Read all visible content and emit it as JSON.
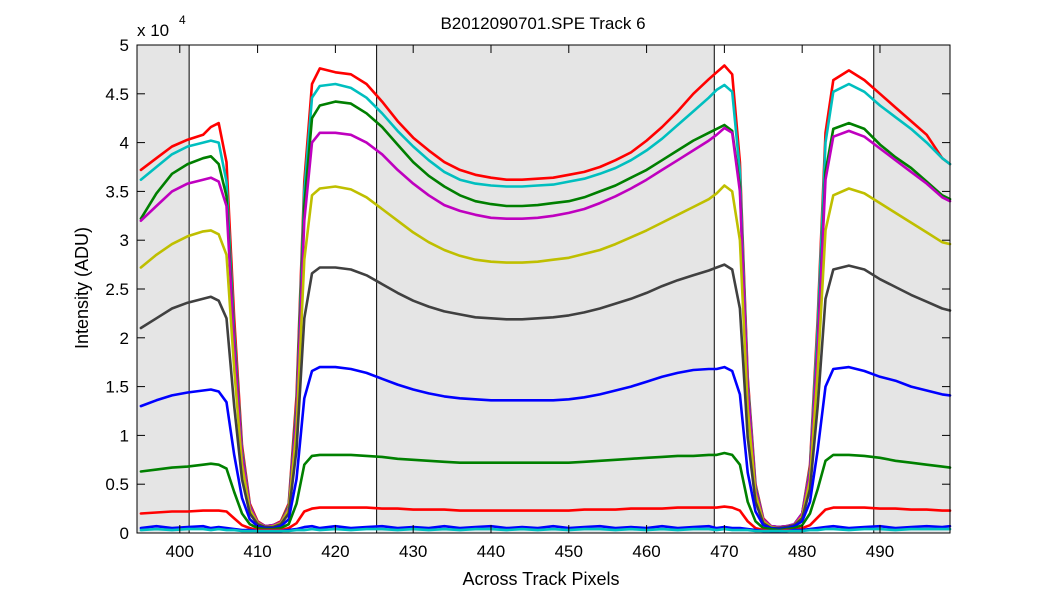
{
  "chart_data": {
    "type": "line",
    "title": "B2012090701.SPE   Track 6",
    "xlabel": "Across Track Pixels",
    "ylabel": "Intensity (ADU)",
    "y_exponent_prefix": "x 10",
    "y_exponent_power": "4",
    "xlim": [
      394.5,
      499
    ],
    "ylim": [
      0,
      5
    ],
    "xticks": [
      400,
      410,
      420,
      430,
      440,
      450,
      460,
      470,
      480,
      490
    ],
    "yticks": [
      0,
      0.5,
      1,
      1.5,
      2,
      2.5,
      3,
      3.5,
      4,
      4.5,
      5
    ],
    "ytick_labels": [
      "0",
      "0.5",
      "1",
      "1.5",
      "2",
      "2.5",
      "3",
      "3.5",
      "4",
      "4.5",
      "5"
    ],
    "grid": false,
    "legend": "none",
    "shaded_regions": [
      [
        394.5,
        401.2
      ],
      [
        425.3,
        468.7
      ],
      [
        489.2,
        499
      ]
    ],
    "vertical_lines": [
      401.2,
      425.3,
      468.7,
      489.2
    ],
    "colors": {
      "background": "#ffffff",
      "shade": "#e5e5e5",
      "axes": "#000000"
    },
    "x": [
      395,
      397,
      399,
      401,
      403,
      404,
      405,
      406,
      407,
      408,
      409,
      410,
      411,
      412,
      413,
      414,
      415,
      416,
      417,
      418,
      420,
      422,
      424,
      426,
      428,
      430,
      432,
      434,
      436,
      438,
      440,
      442,
      444,
      446,
      448,
      450,
      452,
      454,
      456,
      458,
      460,
      462,
      464,
      466,
      468,
      469,
      470,
      471,
      472,
      473,
      474,
      475,
      476,
      477,
      478,
      479,
      480,
      481,
      482,
      483,
      484,
      486,
      488,
      490,
      492,
      494,
      496,
      498,
      499
    ],
    "series": [
      {
        "color": "#ff0000",
        "values": [
          3.72,
          3.84,
          3.96,
          4.03,
          4.08,
          4.16,
          4.2,
          3.8,
          2.2,
          0.9,
          0.3,
          0.12,
          0.07,
          0.08,
          0.12,
          0.3,
          1.4,
          3.6,
          4.6,
          4.76,
          4.72,
          4.7,
          4.6,
          4.42,
          4.22,
          4.05,
          3.92,
          3.8,
          3.72,
          3.67,
          3.64,
          3.62,
          3.62,
          3.63,
          3.64,
          3.67,
          3.7,
          3.75,
          3.82,
          3.9,
          4.02,
          4.16,
          4.32,
          4.5,
          4.65,
          4.72,
          4.79,
          4.7,
          3.8,
          1.6,
          0.5,
          0.15,
          0.07,
          0.06,
          0.07,
          0.09,
          0.2,
          0.7,
          2.2,
          4.1,
          4.64,
          4.74,
          4.64,
          4.5,
          4.36,
          4.22,
          4.08,
          3.84,
          3.78
        ]
      },
      {
        "color": "#00bfbf",
        "values": [
          3.62,
          3.75,
          3.88,
          3.96,
          4.0,
          4.02,
          4.0,
          3.6,
          2.05,
          0.85,
          0.28,
          0.11,
          0.07,
          0.08,
          0.11,
          0.28,
          1.3,
          3.5,
          4.46,
          4.58,
          4.6,
          4.56,
          4.46,
          4.3,
          4.12,
          3.96,
          3.82,
          3.7,
          3.62,
          3.58,
          3.56,
          3.55,
          3.55,
          3.56,
          3.57,
          3.6,
          3.63,
          3.68,
          3.74,
          3.82,
          3.92,
          4.04,
          4.18,
          4.32,
          4.46,
          4.54,
          4.59,
          4.52,
          3.7,
          1.55,
          0.48,
          0.14,
          0.07,
          0.06,
          0.07,
          0.09,
          0.2,
          0.66,
          2.1,
          4.0,
          4.52,
          4.6,
          4.52,
          4.38,
          4.26,
          4.14,
          4.0,
          3.84,
          3.78
        ]
      },
      {
        "color": "#007f00",
        "values": [
          3.22,
          3.48,
          3.68,
          3.78,
          3.84,
          3.86,
          3.78,
          3.45,
          1.98,
          0.82,
          0.27,
          0.11,
          0.07,
          0.08,
          0.11,
          0.27,
          1.25,
          3.35,
          4.25,
          4.38,
          4.42,
          4.4,
          4.3,
          4.16,
          3.98,
          3.8,
          3.66,
          3.55,
          3.46,
          3.4,
          3.37,
          3.35,
          3.35,
          3.36,
          3.38,
          3.4,
          3.44,
          3.5,
          3.56,
          3.64,
          3.72,
          3.82,
          3.92,
          4.02,
          4.1,
          4.14,
          4.18,
          4.12,
          3.55,
          1.5,
          0.46,
          0.14,
          0.07,
          0.06,
          0.07,
          0.09,
          0.2,
          0.63,
          1.95,
          3.7,
          4.14,
          4.2,
          4.14,
          3.98,
          3.85,
          3.74,
          3.6,
          3.46,
          3.42
        ]
      },
      {
        "color": "#bf00bf",
        "values": [
          3.2,
          3.35,
          3.5,
          3.58,
          3.62,
          3.64,
          3.6,
          3.35,
          1.92,
          0.8,
          0.27,
          0.11,
          0.07,
          0.08,
          0.11,
          0.26,
          1.2,
          3.2,
          4.0,
          4.1,
          4.1,
          4.08,
          4.0,
          3.88,
          3.72,
          3.58,
          3.46,
          3.36,
          3.3,
          3.26,
          3.23,
          3.22,
          3.22,
          3.23,
          3.25,
          3.28,
          3.32,
          3.38,
          3.45,
          3.53,
          3.62,
          3.72,
          3.82,
          3.92,
          4.02,
          4.08,
          4.15,
          4.1,
          3.5,
          1.48,
          0.45,
          0.14,
          0.07,
          0.06,
          0.07,
          0.09,
          0.2,
          0.62,
          1.9,
          3.62,
          4.06,
          4.12,
          4.06,
          3.94,
          3.82,
          3.7,
          3.58,
          3.44,
          3.4
        ]
      },
      {
        "color": "#bfbf00",
        "values": [
          2.72,
          2.85,
          2.96,
          3.04,
          3.09,
          3.1,
          3.06,
          2.85,
          1.68,
          0.7,
          0.24,
          0.1,
          0.06,
          0.07,
          0.1,
          0.24,
          1.05,
          2.8,
          3.46,
          3.53,
          3.55,
          3.52,
          3.44,
          3.32,
          3.2,
          3.08,
          2.98,
          2.9,
          2.84,
          2.8,
          2.78,
          2.77,
          2.77,
          2.78,
          2.8,
          2.82,
          2.86,
          2.9,
          2.96,
          3.03,
          3.1,
          3.18,
          3.26,
          3.34,
          3.42,
          3.48,
          3.56,
          3.5,
          3.0,
          1.28,
          0.4,
          0.12,
          0.06,
          0.05,
          0.06,
          0.08,
          0.17,
          0.54,
          1.65,
          3.1,
          3.46,
          3.53,
          3.48,
          3.38,
          3.28,
          3.18,
          3.08,
          2.98,
          2.96
        ]
      },
      {
        "color": "#404040",
        "values": [
          2.1,
          2.2,
          2.3,
          2.36,
          2.4,
          2.42,
          2.38,
          2.2,
          1.3,
          0.55,
          0.2,
          0.09,
          0.06,
          0.06,
          0.09,
          0.2,
          0.85,
          2.2,
          2.66,
          2.72,
          2.72,
          2.7,
          2.64,
          2.55,
          2.46,
          2.38,
          2.32,
          2.27,
          2.24,
          2.21,
          2.2,
          2.19,
          2.19,
          2.2,
          2.21,
          2.23,
          2.26,
          2.3,
          2.35,
          2.4,
          2.46,
          2.53,
          2.59,
          2.64,
          2.69,
          2.72,
          2.75,
          2.7,
          2.3,
          0.98,
          0.32,
          0.1,
          0.05,
          0.05,
          0.06,
          0.08,
          0.15,
          0.45,
          1.3,
          2.4,
          2.7,
          2.74,
          2.7,
          2.6,
          2.52,
          2.44,
          2.37,
          2.3,
          2.28
        ]
      },
      {
        "color": "#0000ff",
        "values": [
          1.3,
          1.36,
          1.41,
          1.44,
          1.46,
          1.47,
          1.45,
          1.34,
          0.8,
          0.36,
          0.14,
          0.07,
          0.05,
          0.05,
          0.07,
          0.14,
          0.55,
          1.38,
          1.66,
          1.7,
          1.7,
          1.68,
          1.64,
          1.58,
          1.52,
          1.47,
          1.43,
          1.4,
          1.38,
          1.37,
          1.36,
          1.36,
          1.36,
          1.36,
          1.36,
          1.37,
          1.39,
          1.42,
          1.46,
          1.5,
          1.55,
          1.6,
          1.64,
          1.67,
          1.68,
          1.68,
          1.7,
          1.66,
          1.42,
          0.62,
          0.22,
          0.08,
          0.05,
          0.04,
          0.05,
          0.07,
          0.12,
          0.32,
          0.85,
          1.5,
          1.68,
          1.7,
          1.66,
          1.6,
          1.56,
          1.5,
          1.46,
          1.42,
          1.41
        ]
      },
      {
        "color": "#008000",
        "values": [
          0.63,
          0.65,
          0.67,
          0.68,
          0.7,
          0.71,
          0.7,
          0.66,
          0.42,
          0.2,
          0.09,
          0.05,
          0.04,
          0.04,
          0.05,
          0.09,
          0.3,
          0.7,
          0.79,
          0.8,
          0.8,
          0.8,
          0.79,
          0.78,
          0.76,
          0.75,
          0.74,
          0.73,
          0.72,
          0.72,
          0.72,
          0.72,
          0.72,
          0.72,
          0.72,
          0.72,
          0.73,
          0.74,
          0.75,
          0.76,
          0.77,
          0.78,
          0.79,
          0.79,
          0.8,
          0.8,
          0.82,
          0.8,
          0.7,
          0.32,
          0.12,
          0.05,
          0.04,
          0.03,
          0.04,
          0.05,
          0.08,
          0.2,
          0.45,
          0.74,
          0.8,
          0.8,
          0.79,
          0.77,
          0.74,
          0.72,
          0.7,
          0.68,
          0.67
        ]
      },
      {
        "color": "#ff0000",
        "values": [
          0.2,
          0.21,
          0.22,
          0.22,
          0.23,
          0.23,
          0.23,
          0.22,
          0.15,
          0.08,
          0.05,
          0.03,
          0.03,
          0.03,
          0.03,
          0.05,
          0.1,
          0.22,
          0.25,
          0.26,
          0.26,
          0.26,
          0.26,
          0.25,
          0.25,
          0.24,
          0.24,
          0.24,
          0.23,
          0.23,
          0.23,
          0.23,
          0.23,
          0.23,
          0.23,
          0.23,
          0.24,
          0.24,
          0.24,
          0.25,
          0.25,
          0.25,
          0.26,
          0.26,
          0.26,
          0.26,
          0.27,
          0.26,
          0.23,
          0.12,
          0.05,
          0.03,
          0.02,
          0.02,
          0.03,
          0.03,
          0.05,
          0.08,
          0.16,
          0.24,
          0.26,
          0.26,
          0.26,
          0.25,
          0.25,
          0.24,
          0.24,
          0.23,
          0.23
        ]
      },
      {
        "color": "#0000ff",
        "values": [
          0.05,
          0.07,
          0.05,
          0.06,
          0.07,
          0.05,
          0.06,
          0.05,
          0.04,
          0.03,
          0.03,
          0.02,
          0.02,
          0.02,
          0.02,
          0.03,
          0.04,
          0.06,
          0.07,
          0.05,
          0.07,
          0.05,
          0.06,
          0.07,
          0.05,
          0.06,
          0.05,
          0.07,
          0.05,
          0.06,
          0.07,
          0.05,
          0.06,
          0.05,
          0.07,
          0.05,
          0.06,
          0.07,
          0.05,
          0.06,
          0.05,
          0.07,
          0.05,
          0.06,
          0.07,
          0.05,
          0.06,
          0.05,
          0.05,
          0.04,
          0.03,
          0.02,
          0.02,
          0.02,
          0.02,
          0.03,
          0.03,
          0.04,
          0.05,
          0.06,
          0.07,
          0.05,
          0.06,
          0.07,
          0.05,
          0.06,
          0.07,
          0.06,
          0.07
        ]
      },
      {
        "color": "#00bfbf",
        "values": [
          0.03,
          0.04,
          0.03,
          0.04,
          0.04,
          0.03,
          0.04,
          0.03,
          0.03,
          0.02,
          0.02,
          0.02,
          0.02,
          0.02,
          0.02,
          0.02,
          0.03,
          0.03,
          0.04,
          0.03,
          0.04,
          0.03,
          0.04,
          0.04,
          0.03,
          0.04,
          0.03,
          0.04,
          0.03,
          0.04,
          0.04,
          0.03,
          0.04,
          0.03,
          0.04,
          0.03,
          0.04,
          0.04,
          0.03,
          0.04,
          0.03,
          0.04,
          0.03,
          0.04,
          0.04,
          0.03,
          0.04,
          0.03,
          0.03,
          0.03,
          0.02,
          0.02,
          0.02,
          0.02,
          0.02,
          0.02,
          0.02,
          0.03,
          0.03,
          0.04,
          0.04,
          0.03,
          0.04,
          0.04,
          0.03,
          0.04,
          0.04,
          0.04,
          0.04
        ]
      }
    ]
  }
}
